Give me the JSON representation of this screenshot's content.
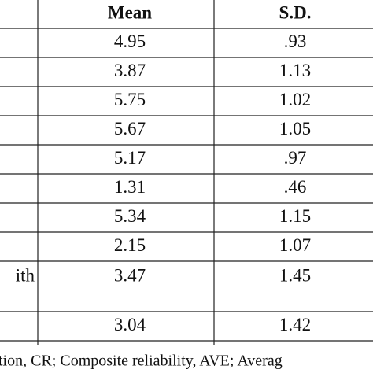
{
  "table": {
    "header": {
      "mean": "Mean",
      "sd": "S.D."
    },
    "rows": [
      {
        "mean": "4.95",
        "sd": ".93"
      },
      {
        "mean": "3.87",
        "sd": "1.13"
      },
      {
        "mean": "5.75",
        "sd": "1.02"
      },
      {
        "mean": "5.67",
        "sd": "1.05"
      },
      {
        "mean": "5.17",
        "sd": ".97"
      },
      {
        "mean": "1.31",
        "sd": ".46"
      },
      {
        "mean": "5.34",
        "sd": "1.15"
      },
      {
        "mean": "2.15",
        "sd": "1.07"
      },
      {
        "label": "ith",
        "mean": "3.47",
        "sd": "1.45"
      },
      {
        "mean": "3.04",
        "sd": "1.42"
      }
    ]
  },
  "footnote": "tion, CR; Composite reliability, AVE; Averag"
}
